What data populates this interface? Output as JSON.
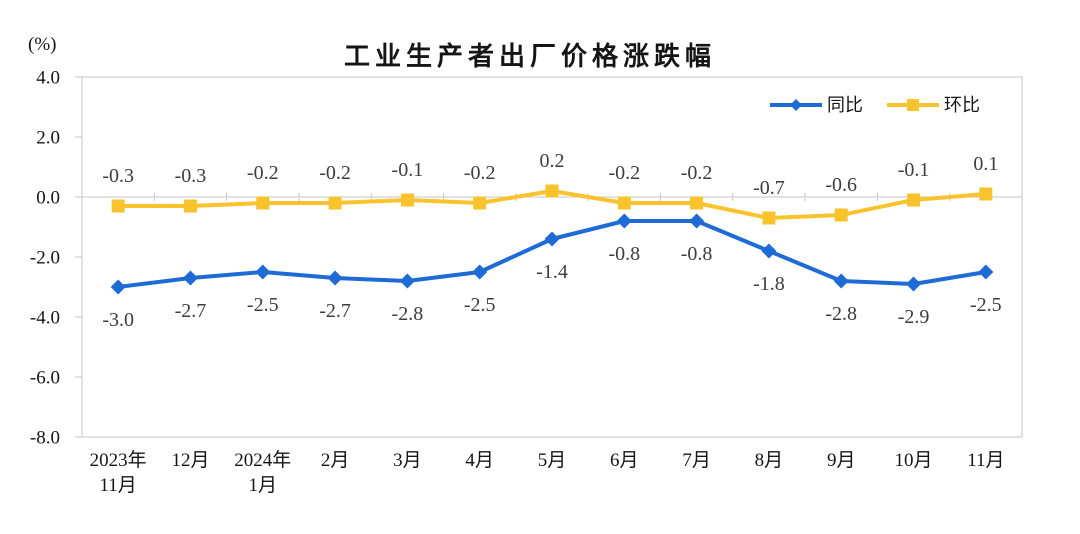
{
  "chart_data": {
    "type": "line",
    "title": "工业生产者出厂价格涨跌幅",
    "unit_label": "(%)",
    "categories": [
      "2023年\n11月",
      "12月",
      "2024年\n1月",
      "2月",
      "3月",
      "4月",
      "5月",
      "6月",
      "7月",
      "8月",
      "9月",
      "10月",
      "11月"
    ],
    "ylim": [
      -8.0,
      4.0
    ],
    "yticks": [
      "4.0",
      "2.0",
      "0.0",
      "-2.0",
      "-4.0",
      "-6.0",
      "-8.0"
    ],
    "grid": false,
    "legend_position": "top-right",
    "axis_color": "#c6c6c6",
    "data_label_color": "#3d3d3d",
    "axis_label_color": "#151515",
    "series": [
      {
        "name": "同比",
        "color": "#1e6bd6",
        "marker": "diamond",
        "label_position": "below",
        "values": [
          -3.0,
          -2.7,
          -2.5,
          -2.7,
          -2.8,
          -2.5,
          -1.4,
          -0.8,
          -0.8,
          -1.8,
          -2.8,
          -2.9,
          -2.5
        ],
        "labels": [
          "-3.0",
          "-2.7",
          "-2.5",
          "-2.7",
          "-2.8",
          "-2.5",
          "-1.4",
          "-0.8",
          "-0.8",
          "-1.8",
          "-2.8",
          "-2.9",
          "-2.5"
        ]
      },
      {
        "name": "环比",
        "color": "#fac32d",
        "marker": "square",
        "label_position": "above",
        "values": [
          -0.3,
          -0.3,
          -0.2,
          -0.2,
          -0.1,
          -0.2,
          0.2,
          -0.2,
          -0.2,
          -0.7,
          -0.6,
          -0.1,
          0.1
        ],
        "labels": [
          "-0.3",
          "-0.3",
          "-0.2",
          "-0.2",
          "-0.1",
          "-0.2",
          "0.2",
          "-0.2",
          "-0.2",
          "-0.7",
          "-0.6",
          "-0.1",
          "0.1"
        ]
      }
    ]
  }
}
